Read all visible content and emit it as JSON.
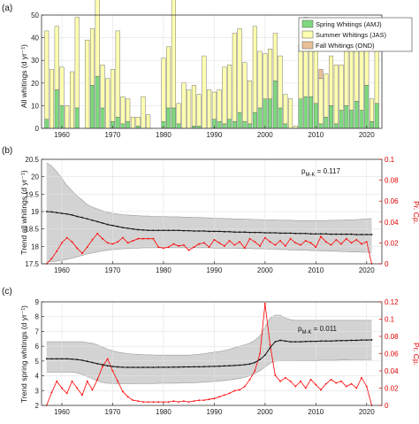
{
  "chart_data": [
    {
      "type": "bar",
      "panel_label": "(a)",
      "ylabel": "All whitings (d yr⁻¹)",
      "ylim": [
        0,
        50
      ],
      "yticks": [
        0,
        10,
        20,
        30,
        40,
        50
      ],
      "xlim": [
        1956,
        2023
      ],
      "xticks": [
        1960,
        1970,
        1980,
        1990,
        2000,
        2010,
        2020
      ],
      "grid": true,
      "legend_position": "top-right",
      "colors": {
        "spring": "#7fd87f",
        "summer": "#ffffb0",
        "fall": "#e8c098",
        "edge": "#555555"
      },
      "series": [
        {
          "name": "Spring Whitings (AMJ)",
          "key": "spring"
        },
        {
          "name": "Summer Whitings (JAS)",
          "key": "summer"
        },
        {
          "name": "Fall Whitings (OND)",
          "key": "fall"
        }
      ],
      "x": [
        1957,
        1958,
        1959,
        1960,
        1961,
        1962,
        1963,
        1964,
        1965,
        1966,
        1967,
        1968,
        1969,
        1970,
        1971,
        1972,
        1973,
        1974,
        1975,
        1976,
        1977,
        1978,
        1979,
        1980,
        1981,
        1982,
        1983,
        1984,
        1985,
        1986,
        1987,
        1988,
        1989,
        1990,
        1991,
        1992,
        1993,
        1994,
        1995,
        1996,
        1997,
        1998,
        1999,
        2000,
        2001,
        2002,
        2003,
        2004,
        2005,
        2006,
        2007,
        2008,
        2009,
        2010,
        2011,
        2012,
        2013,
        2014,
        2015,
        2016,
        2017,
        2018,
        2019,
        2020,
        2021,
        2022
      ],
      "spring_values": [
        4,
        0,
        17,
        10,
        0,
        0,
        9,
        0,
        0,
        19,
        23,
        9,
        0,
        3,
        5,
        2,
        3,
        0,
        1,
        0,
        0,
        0,
        0,
        3,
        9,
        9,
        2,
        0,
        0,
        1,
        1,
        0,
        0,
        4,
        3,
        2,
        4,
        3,
        7,
        3,
        2,
        7,
        9,
        13,
        13,
        21,
        9,
        2,
        0,
        0,
        13,
        14,
        14,
        11,
        2,
        5,
        10,
        2,
        8,
        10,
        8,
        12,
        8,
        19,
        3,
        11
      ],
      "summer_values": [
        39,
        26,
        28,
        17,
        10,
        25,
        40,
        0,
        39,
        25,
        34,
        19,
        22,
        23,
        38,
        12,
        10,
        5,
        4,
        14,
        6,
        0,
        0,
        28,
        27,
        48,
        9,
        20,
        17,
        18,
        14,
        32,
        17,
        12,
        14,
        25,
        24,
        39,
        37,
        26,
        19,
        38,
        25,
        20,
        22,
        21,
        23,
        13,
        13,
        1,
        24,
        35,
        30,
        30,
        20,
        19,
        22,
        26,
        20,
        24,
        38,
        22,
        34,
        23,
        10,
        30
      ],
      "fall_values": [
        0,
        0,
        0,
        0,
        0,
        0,
        0,
        0,
        0,
        0,
        0,
        0,
        0,
        0,
        0,
        0,
        0,
        0,
        0,
        0,
        0,
        0,
        0,
        0,
        0,
        0,
        0,
        0,
        0,
        0,
        0,
        0,
        0,
        0,
        0,
        0,
        0,
        0,
        0,
        0,
        0,
        0,
        0,
        0,
        0,
        0,
        0,
        0,
        0,
        0,
        0,
        0,
        0,
        0,
        4,
        0,
        0,
        0,
        0,
        0,
        0,
        0,
        0,
        0,
        0,
        0
      ]
    },
    {
      "type": "line",
      "panel_label": "(b)",
      "ylabel": "Trend all whitings (d yr⁻¹)",
      "ylabel_right": "Pr. Cp.",
      "ylim": [
        17.5,
        20.5
      ],
      "yticks": [
        17.5,
        18,
        18.5,
        19,
        19.5,
        20,
        20.5
      ],
      "ylim_right": [
        0,
        0.1
      ],
      "yticks_right": [
        0,
        0.02,
        0.04,
        0.06,
        0.08,
        0.1
      ],
      "xlim": [
        1956,
        2023
      ],
      "xticks": [
        1960,
        1970,
        1980,
        1990,
        2000,
        2010,
        2020
      ],
      "grid": true,
      "annotation": {
        "prefix": "p",
        "subscript": "M-K",
        "text": " = 0.117"
      },
      "colors": {
        "band": "#d3d3d3",
        "band_edge": "#9a9a9a",
        "trend": "#111111",
        "prob": "#ff0000"
      },
      "x": [
        1957,
        1958,
        1959,
        1960,
        1961,
        1962,
        1963,
        1964,
        1965,
        1966,
        1967,
        1968,
        1969,
        1970,
        1971,
        1972,
        1973,
        1974,
        1975,
        1976,
        1977,
        1978,
        1979,
        1980,
        1981,
        1982,
        1983,
        1984,
        1985,
        1986,
        1987,
        1988,
        1989,
        1990,
        1991,
        1992,
        1993,
        1994,
        1995,
        1996,
        1997,
        1998,
        1999,
        2000,
        2001,
        2002,
        2003,
        2004,
        2005,
        2006,
        2007,
        2008,
        2009,
        2010,
        2011,
        2012,
        2013,
        2014,
        2015,
        2016,
        2017,
        2018,
        2019,
        2020,
        2021
      ],
      "trend": [
        19.0,
        18.99,
        18.97,
        18.95,
        18.93,
        18.9,
        18.86,
        18.83,
        18.79,
        18.75,
        18.71,
        18.67,
        18.63,
        18.6,
        18.57,
        18.54,
        18.52,
        18.5,
        18.48,
        18.47,
        18.46,
        18.46,
        18.46,
        18.46,
        18.46,
        18.46,
        18.46,
        18.45,
        18.45,
        18.44,
        18.44,
        18.44,
        18.43,
        18.43,
        18.43,
        18.42,
        18.42,
        18.41,
        18.41,
        18.41,
        18.4,
        18.4,
        18.4,
        18.39,
        18.39,
        18.39,
        18.38,
        18.38,
        18.38,
        18.37,
        18.37,
        18.37,
        18.36,
        18.36,
        18.36,
        18.36,
        18.35,
        18.35,
        18.35,
        18.35,
        18.35,
        18.34,
        18.34,
        18.34,
        18.34
      ],
      "band_upper": [
        20.4,
        20.3,
        20.15,
        19.95,
        19.75,
        19.6,
        19.45,
        19.33,
        19.2,
        19.13,
        19.07,
        19.02,
        18.98,
        18.95,
        18.93,
        18.91,
        18.9,
        18.89,
        18.88,
        18.87,
        18.87,
        18.86,
        18.86,
        18.86,
        18.85,
        18.85,
        18.85,
        18.84,
        18.84,
        18.83,
        18.83,
        18.82,
        18.82,
        18.81,
        18.81,
        18.8,
        18.8,
        18.79,
        18.79,
        18.78,
        18.78,
        18.77,
        18.77,
        18.76,
        18.76,
        18.76,
        18.75,
        18.75,
        18.75,
        18.74,
        18.74,
        18.74,
        18.74,
        18.74,
        18.74,
        18.74,
        18.75,
        18.75,
        18.75,
        18.76,
        18.76,
        18.77,
        18.78,
        18.79,
        18.8
      ],
      "band_lower": [
        17.55,
        17.56,
        17.58,
        17.6,
        17.63,
        17.66,
        17.7,
        17.74,
        17.78,
        17.81,
        17.84,
        17.87,
        17.89,
        17.91,
        17.92,
        17.93,
        17.94,
        17.95,
        17.95,
        17.96,
        17.96,
        17.96,
        17.96,
        17.96,
        17.96,
        17.96,
        17.96,
        17.96,
        17.96,
        17.96,
        17.96,
        17.96,
        17.96,
        17.95,
        17.95,
        17.95,
        17.95,
        17.95,
        17.94,
        17.94,
        17.94,
        17.93,
        17.93,
        17.93,
        17.92,
        17.92,
        17.91,
        17.91,
        17.9,
        17.9,
        17.89,
        17.89,
        17.88,
        17.88,
        17.87,
        17.87,
        17.86,
        17.86,
        17.85,
        17.85,
        17.84,
        17.84,
        17.83,
        17.83,
        17.82
      ],
      "prob": [
        0.0,
        0.005,
        0.012,
        0.02,
        0.025,
        0.021,
        0.015,
        0.01,
        0.016,
        0.023,
        0.029,
        0.024,
        0.02,
        0.019,
        0.021,
        0.025,
        0.02,
        0.022,
        0.024,
        0.024,
        0.024,
        0.024,
        0.016,
        0.015,
        0.016,
        0.019,
        0.017,
        0.018,
        0.013,
        0.016,
        0.019,
        0.02,
        0.016,
        0.023,
        0.02,
        0.017,
        0.022,
        0.018,
        0.021,
        0.015,
        0.024,
        0.021,
        0.017,
        0.025,
        0.021,
        0.018,
        0.022,
        0.017,
        0.024,
        0.02,
        0.018,
        0.022,
        0.02,
        0.016,
        0.026,
        0.021,
        0.018,
        0.023,
        0.019,
        0.024,
        0.02,
        0.023,
        0.019,
        0.021,
        0.0
      ]
    },
    {
      "type": "line",
      "panel_label": "(c)",
      "ylabel": "Trend spring whitings (d yr⁻¹)",
      "ylabel_right": "Pr. Cp.",
      "ylim": [
        2,
        9
      ],
      "yticks": [
        2,
        3,
        4,
        5,
        6,
        7,
        8,
        9
      ],
      "ylim_right": [
        0,
        0.12
      ],
      "yticks_right": [
        0,
        0.02,
        0.04,
        0.06,
        0.08,
        0.1,
        0.12
      ],
      "xlim": [
        1956,
        2023
      ],
      "xticks": [
        1960,
        1970,
        1980,
        1990,
        2000,
        2010,
        2020
      ],
      "grid": true,
      "annotation": {
        "prefix": "p",
        "subscript": "M-K",
        "text": " = 0.011"
      },
      "colors": {
        "band": "#d3d3d3",
        "band_edge": "#9a9a9a",
        "trend": "#111111",
        "prob": "#ff0000"
      },
      "x": [
        1957,
        1958,
        1959,
        1960,
        1961,
        1962,
        1963,
        1964,
        1965,
        1966,
        1967,
        1968,
        1969,
        1970,
        1971,
        1972,
        1973,
        1974,
        1975,
        1976,
        1977,
        1978,
        1979,
        1980,
        1981,
        1982,
        1983,
        1984,
        1985,
        1986,
        1987,
        1988,
        1989,
        1990,
        1991,
        1992,
        1993,
        1994,
        1995,
        1996,
        1997,
        1998,
        1999,
        2000,
        2001,
        2002,
        2003,
        2004,
        2005,
        2006,
        2007,
        2008,
        2009,
        2010,
        2011,
        2012,
        2013,
        2014,
        2015,
        2016,
        2017,
        2018,
        2019,
        2020,
        2021
      ],
      "trend": [
        5.15,
        5.15,
        5.15,
        5.15,
        5.15,
        5.13,
        5.1,
        5.05,
        4.98,
        4.9,
        4.82,
        4.75,
        4.68,
        4.63,
        4.6,
        4.58,
        4.57,
        4.57,
        4.57,
        4.57,
        4.57,
        4.57,
        4.58,
        4.58,
        4.58,
        4.59,
        4.59,
        4.6,
        4.6,
        4.61,
        4.61,
        4.62,
        4.63,
        4.64,
        4.65,
        4.67,
        4.68,
        4.7,
        4.72,
        4.75,
        4.8,
        4.9,
        5.1,
        5.4,
        5.9,
        6.3,
        6.4,
        6.35,
        6.3,
        6.3,
        6.3,
        6.32,
        6.33,
        6.33,
        6.35,
        6.35,
        6.35,
        6.37,
        6.38,
        6.38,
        6.4,
        6.4,
        6.42,
        6.42,
        6.43
      ],
      "band_upper": [
        6.3,
        6.3,
        6.3,
        6.3,
        6.3,
        6.3,
        6.3,
        6.3,
        6.25,
        6.2,
        6.1,
        5.95,
        5.8,
        5.7,
        5.6,
        5.55,
        5.5,
        5.47,
        5.45,
        5.43,
        5.42,
        5.41,
        5.4,
        5.4,
        5.4,
        5.4,
        5.4,
        5.4,
        5.4,
        5.42,
        5.45,
        5.5,
        5.55,
        5.6,
        5.65,
        5.7,
        5.8,
        5.9,
        6.0,
        6.1,
        6.2,
        6.4,
        6.7,
        7.3,
        7.9,
        8.1,
        8.1,
        7.9,
        7.8,
        7.75,
        7.75,
        7.75,
        7.75,
        7.75,
        7.75,
        7.75,
        7.75,
        7.75,
        7.75,
        7.75,
        7.75,
        7.75,
        7.75,
        7.75,
        7.75
      ],
      "band_lower": [
        4.25,
        4.25,
        4.25,
        4.25,
        4.25,
        4.25,
        4.2,
        4.1,
        3.95,
        3.8,
        3.65,
        3.55,
        3.5,
        3.48,
        3.47,
        3.47,
        3.47,
        3.47,
        3.47,
        3.48,
        3.48,
        3.48,
        3.49,
        3.5,
        3.5,
        3.5,
        3.51,
        3.52,
        3.52,
        3.53,
        3.55,
        3.57,
        3.6,
        3.62,
        3.65,
        3.68,
        3.72,
        3.77,
        3.82,
        3.9,
        4.0,
        4.15,
        4.35,
        4.6,
        4.85,
        4.98,
        5.02,
        5.02,
        5.02,
        5.02,
        5.03,
        5.03,
        5.03,
        5.04,
        5.05,
        5.05,
        5.05,
        5.06,
        5.07,
        5.07,
        5.08,
        5.08,
        5.09,
        5.1,
        5.1
      ],
      "prob": [
        0.0,
        0.015,
        0.028,
        0.02,
        0.014,
        0.028,
        0.02,
        0.012,
        0.028,
        0.018,
        0.03,
        0.045,
        0.054,
        0.04,
        0.028,
        0.016,
        0.01,
        0.006,
        0.005,
        0.004,
        0.004,
        0.004,
        0.004,
        0.004,
        0.004,
        0.005,
        0.004,
        0.005,
        0.004,
        0.005,
        0.006,
        0.006,
        0.007,
        0.008,
        0.01,
        0.012,
        0.014,
        0.017,
        0.018,
        0.022,
        0.03,
        0.04,
        0.06,
        0.118,
        0.07,
        0.035,
        0.028,
        0.032,
        0.028,
        0.022,
        0.028,
        0.02,
        0.03,
        0.024,
        0.018,
        0.025,
        0.03,
        0.026,
        0.028,
        0.022,
        0.025,
        0.02,
        0.032,
        0.022,
        0.0
      ]
    }
  ]
}
